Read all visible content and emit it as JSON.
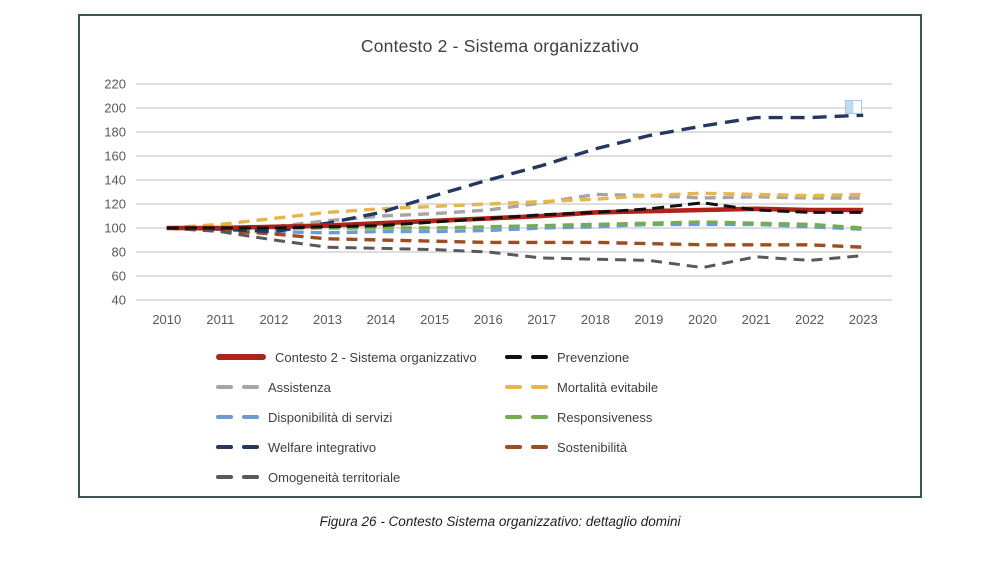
{
  "title": {
    "text": "Contesto 2 - Sistema organizzativo"
  },
  "caption": {
    "text": "Figura 26 - Contesto Sistema organizzativo: dettaglio domini"
  },
  "colors": {
    "frame_border": "#3A5359",
    "gridline": "#D4D4D4",
    "axis_text": "#595959",
    "title_text": "#3F3F3F",
    "legend_text": "#3F3F3F",
    "caption_text": "#1F1F1F"
  },
  "chart_data": {
    "type": "line",
    "title": "Contesto 2 - Sistema organizzativo",
    "categories": [
      "2010",
      "2011",
      "2012",
      "2013",
      "2014",
      "2015",
      "2016",
      "2017",
      "2018",
      "2019",
      "2020",
      "2021",
      "2022",
      "2023"
    ],
    "xlabel": "",
    "ylabel": "",
    "ylim": [
      40,
      220
    ],
    "y_tick_step": 20,
    "y_ticks": [
      220,
      200,
      180,
      160,
      140,
      120,
      100,
      80,
      60,
      40
    ],
    "grid": true,
    "legend_position": "bottom",
    "series": [
      {
        "name": "Contesto 2 - Sistema organizzativo",
        "color": "#B02318",
        "line_style": "solid",
        "stroke_width": 4.6,
        "values": [
          100,
          100,
          101,
          102,
          104,
          106,
          108,
          110,
          113,
          114,
          115,
          116,
          115,
          115
        ]
      },
      {
        "name": "Prevenzione",
        "color": "#111111",
        "line_style": "dash",
        "stroke_width": 3,
        "values": [
          100,
          100,
          100,
          101,
          102,
          105,
          108,
          111,
          113,
          116,
          121,
          115,
          113,
          113
        ]
      },
      {
        "name": "Assistenza",
        "color": "#A5A5A5",
        "line_style": "dash",
        "stroke_width": 3.4,
        "values": [
          100,
          98,
          101,
          106,
          110,
          112,
          115,
          121,
          128,
          127,
          125,
          126,
          125,
          125
        ]
      },
      {
        "name": "Mortalità evitabile",
        "color": "#E8B54A",
        "line_style": "dash",
        "stroke_width": 3.4,
        "values": [
          100,
          103,
          108,
          113,
          116,
          118,
          120,
          122,
          124,
          127,
          129,
          128,
          127,
          128
        ]
      },
      {
        "name": "Disponibilità di servizi",
        "color": "#6B9BD2",
        "line_style": "dash",
        "stroke_width": 3.4,
        "values": [
          100,
          98,
          97,
          96,
          97,
          97,
          98,
          100,
          101,
          103,
          103,
          103,
          101,
          99
        ]
      },
      {
        "name": "Responsiveness",
        "color": "#76AC4E",
        "line_style": "dash",
        "stroke_width": 3.4,
        "values": [
          100,
          99,
          100,
          100,
          100,
          100,
          101,
          102,
          103,
          104,
          105,
          104,
          103,
          100
        ]
      },
      {
        "name": "Welfare integrativo",
        "color": "#24385F",
        "line_style": "dash",
        "stroke_width": 3.4,
        "values": [
          100,
          99,
          97,
          104,
          113,
          127,
          140,
          152,
          166,
          177,
          185,
          192,
          192,
          194
        ]
      },
      {
        "name": "Sostenibilità",
        "color": "#9E4D20",
        "line_style": "dash",
        "stroke_width": 3.4,
        "values": [
          100,
          98,
          95,
          91,
          90,
          89,
          88,
          88,
          88,
          87,
          86,
          86,
          86,
          84
        ]
      },
      {
        "name": "Omogeneità territoriale",
        "color": "#595959",
        "line_style": "dash",
        "stroke_width": 3,
        "values": [
          100,
          97,
          90,
          84,
          83,
          82,
          80,
          75,
          74,
          73,
          67,
          76,
          73,
          77
        ]
      }
    ]
  }
}
